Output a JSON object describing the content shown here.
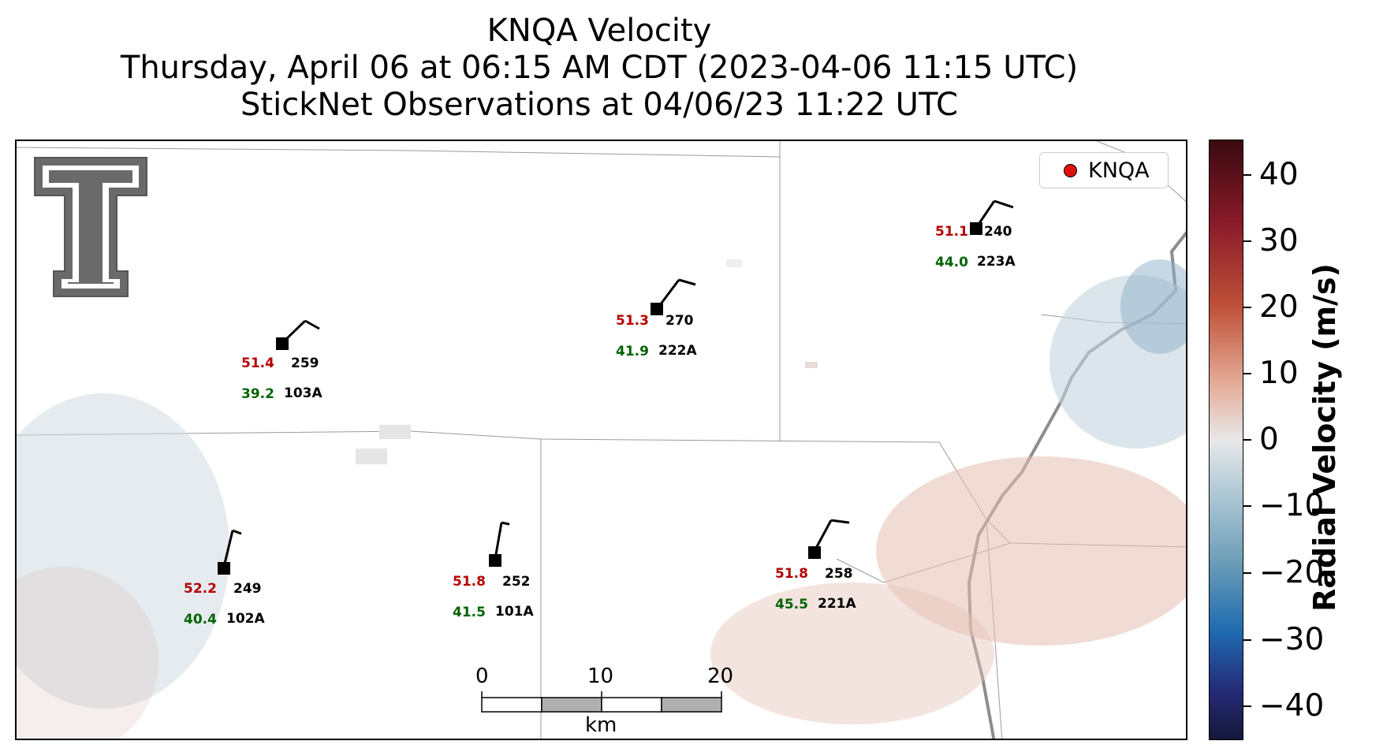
{
  "title": {
    "line1": "KNQA Velocity",
    "line2": "Thursday, April 06 at 06:15 AM CDT (2023-04-06 11:15 UTC)",
    "line3": "StickNet Observations at 04/06/23 11:22 UTC"
  },
  "legend": {
    "label": "KNQA"
  },
  "stations": [
    {
      "id": "103A",
      "temp": "51.4",
      "dew": "39.2",
      "dir": "259"
    },
    {
      "id": "222A",
      "temp": "51.3",
      "dew": "41.9",
      "dir": "270"
    },
    {
      "id": "223A",
      "temp": "51.1",
      "dew": "44.0",
      "dir": "240"
    },
    {
      "id": "102A",
      "temp": "52.2",
      "dew": "40.4",
      "dir": "249"
    },
    {
      "id": "101A",
      "temp": "51.8",
      "dew": "41.5",
      "dir": "252"
    },
    {
      "id": "221A",
      "temp": "51.8",
      "dew": "45.5",
      "dir": "258"
    }
  ],
  "scale_bar": {
    "ticks": [
      "0",
      "10",
      "20"
    ],
    "unit": "km"
  },
  "colorbar": {
    "label": "Radial Velocity (m/s)",
    "ticks": [
      "40",
      "30",
      "20",
      "10",
      "0",
      "−10",
      "−20",
      "−30",
      "−40"
    ],
    "range": [
      -45,
      45
    ]
  },
  "colors": {
    "temp": "#b40000",
    "dew": "#006400",
    "marker": "#e01010"
  }
}
